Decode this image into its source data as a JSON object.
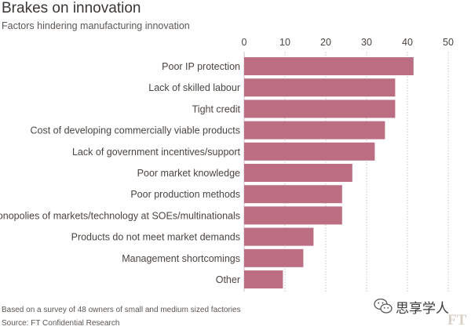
{
  "title": "Brakes on innovation",
  "subtitle": "Factors hindering manufacturing innovation",
  "footnote": "Based on a survey of 48 owners of small and medium sized factories",
  "source": "Source: FT Confidential Research",
  "watermark": {
    "text": "思享学人",
    "brand": "FT",
    "icon": "wechat-icon"
  },
  "colors": {
    "bar": "#bb6e82",
    "grid": "#c9c3bd",
    "text": "#4a4540"
  },
  "chart_data": {
    "type": "bar",
    "orientation": "horizontal",
    "categories": [
      "Poor IP protection",
      "Lack of skilled labour",
      "Tight credit",
      "Cost of developing commercially viable products",
      "Lack of government incentives/support",
      "Poor market knowledge",
      "Poor production methods",
      "Monopolies of markets/technology at SOEs/multinationals",
      "Products do not meet market demands",
      "Management shortcomings",
      "Other"
    ],
    "values": [
      41.5,
      37,
      37,
      34.5,
      32,
      26.5,
      24,
      24,
      17,
      14.5,
      9.5
    ],
    "xlim": [
      0,
      50
    ],
    "xticks": [
      0,
      10,
      20,
      30,
      40,
      50
    ],
    "axis_position": "top",
    "grid": true
  }
}
